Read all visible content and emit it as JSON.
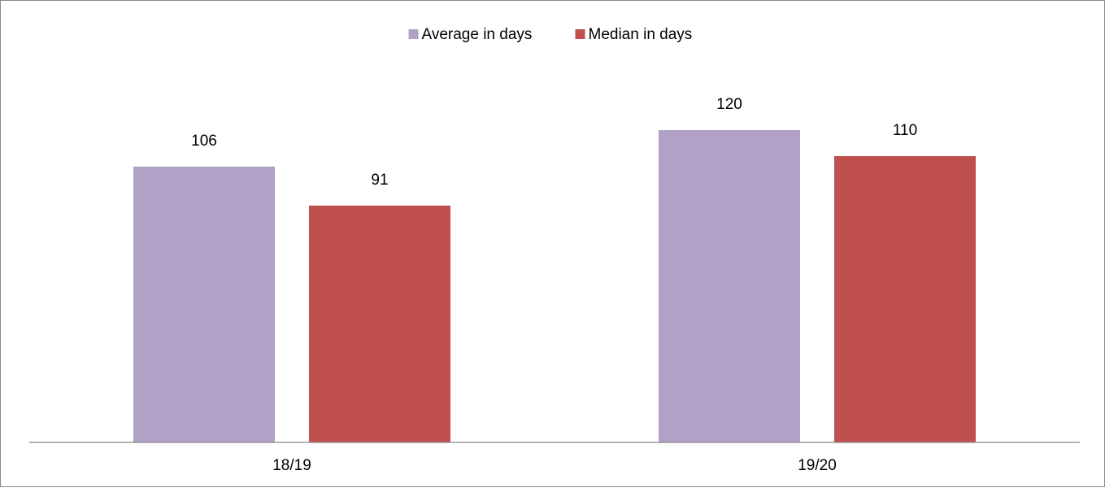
{
  "chart_data": {
    "type": "bar",
    "title": "",
    "xlabel": "",
    "ylabel": "",
    "categories": [
      "18/19",
      "19/20"
    ],
    "series": [
      {
        "name": "Average in days",
        "values": [
          106,
          120
        ],
        "color": "#b2a1c7"
      },
      {
        "name": "Median in days",
        "values": [
          91,
          110
        ],
        "color": "#c0504d"
      }
    ],
    "ylim": [
      0,
      140
    ],
    "grid": false,
    "legend": "top-center",
    "data_labels": true
  }
}
